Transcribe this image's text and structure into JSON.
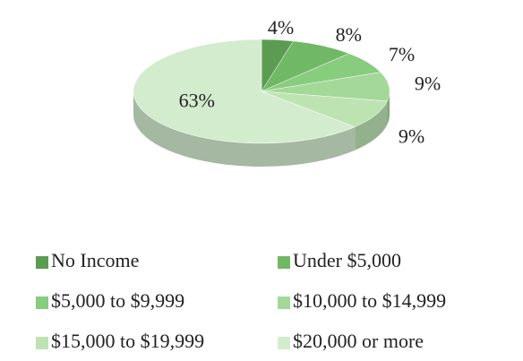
{
  "chart_data": {
    "type": "pie",
    "categories": [
      "No Income",
      "Under $5,000",
      "$5,000 to $9,999",
      "$10,000 to $14,999",
      "$15,000 to $19,999",
      "$20,000 or more"
    ],
    "values": [
      4,
      8,
      7,
      9,
      9,
      63
    ],
    "value_labels": [
      "4%",
      "8%",
      "7%",
      "9%",
      "9%",
      "63%"
    ],
    "colors": [
      "#5c9c52",
      "#70b866",
      "#88cc7e",
      "#a3d898",
      "#bde3b3",
      "#d4ecce"
    ],
    "legend": "bottom"
  }
}
